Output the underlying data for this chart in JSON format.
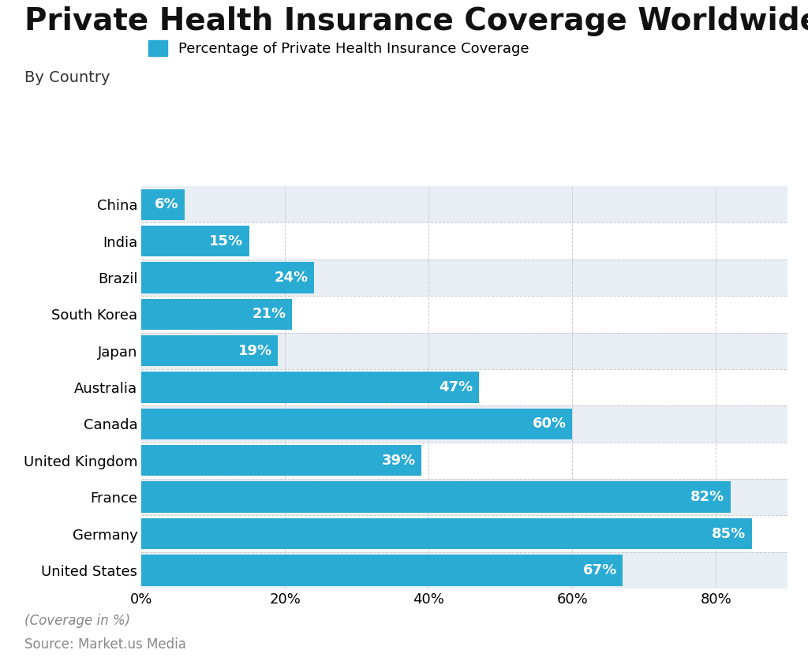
{
  "title": "Private Health Insurance Coverage Worldwide",
  "subtitle": "By Country",
  "legend_label": "Percentage of Private Health Insurance Coverage",
  "footnote": "(Coverage in %)",
  "source": "Source: Market.us Media",
  "categories": [
    "China",
    "India",
    "Brazil",
    "South Korea",
    "Japan",
    "Australia",
    "Canada",
    "United Kingdom",
    "France",
    "Germany",
    "United States"
  ],
  "values": [
    6,
    15,
    24,
    21,
    19,
    47,
    60,
    39,
    82,
    85,
    67
  ],
  "bar_color": "#29ABD4",
  "label_color": "#ffffff",
  "background_color": "#ffffff",
  "stripe_color": "#e8eef4",
  "title_fontsize": 28,
  "subtitle_fontsize": 14,
  "axis_tick_fontsize": 13,
  "bar_label_fontsize": 13,
  "legend_fontsize": 13,
  "footnote_fontsize": 12,
  "source_fontsize": 12,
  "xlim": [
    0,
    90
  ],
  "xticks": [
    0,
    20,
    40,
    60,
    80
  ]
}
